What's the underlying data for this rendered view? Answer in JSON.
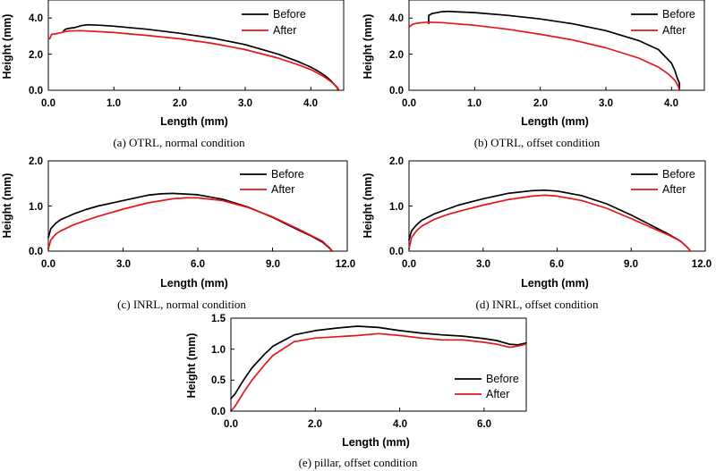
{
  "colors": {
    "before": "#000000",
    "after": "#e8141b"
  },
  "chart_data": [
    {
      "type": "line",
      "caption": "(a) OTRL, normal condition",
      "xlabel": "Length (mm)",
      "ylabel": "Height (mm)",
      "xlim": [
        0,
        4.5
      ],
      "ylim": [
        0,
        5.0
      ],
      "xticks": [
        0,
        1,
        2,
        3,
        4
      ],
      "xtick_labels": [
        "0.0",
        "1.0",
        "2.0",
        "3.0",
        "4.0"
      ],
      "yticks": [
        0,
        2,
        4
      ],
      "ytick_labels": [
        "0.0",
        "2.0",
        "4.0"
      ],
      "legend": {
        "position": "top-right",
        "entries": [
          "Before",
          "After"
        ]
      },
      "series": [
        {
          "name": "Before",
          "x": [
            0.23,
            0.26,
            0.3,
            0.4,
            0.5,
            0.6,
            0.8,
            1.0,
            1.5,
            2.0,
            2.5,
            3.0,
            3.5,
            3.8,
            4.0,
            4.1,
            4.2,
            4.3,
            4.4,
            4.42
          ],
          "y": [
            3.28,
            3.38,
            3.42,
            3.47,
            3.58,
            3.63,
            3.6,
            3.55,
            3.38,
            3.16,
            2.89,
            2.53,
            2.0,
            1.6,
            1.28,
            1.08,
            0.85,
            0.55,
            0.15,
            0
          ]
        },
        {
          "name": "After",
          "x": [
            0.02,
            0.05,
            0.1,
            0.2,
            0.3,
            0.5,
            1.0,
            1.5,
            2.0,
            2.5,
            3.0,
            3.5,
            3.8,
            4.0,
            4.1,
            4.2,
            4.3,
            4.4,
            4.43
          ],
          "y": [
            2.85,
            3.1,
            3.12,
            3.2,
            3.28,
            3.3,
            3.2,
            3.04,
            2.85,
            2.6,
            2.25,
            1.78,
            1.42,
            1.15,
            0.95,
            0.75,
            0.5,
            0.18,
            0
          ]
        }
      ]
    },
    {
      "type": "line",
      "caption": "(b) OTRL, offset condition",
      "xlabel": "Length (mm)",
      "ylabel": "Height (mm)",
      "xlim": [
        0,
        4.5
      ],
      "ylim": [
        0,
        5.0
      ],
      "xticks": [
        0,
        1,
        2,
        3,
        4
      ],
      "xtick_labels": [
        "0.0",
        "1.0",
        "2.0",
        "3.0",
        "4.0"
      ],
      "yticks": [
        0,
        2,
        4
      ],
      "ytick_labels": [
        "0.0",
        "2.0",
        "4.0"
      ],
      "legend": {
        "position": "top-right",
        "entries": [
          "Before",
          "After"
        ]
      },
      "series": [
        {
          "name": "Before",
          "x": [
            0.3,
            0.3,
            0.35,
            0.5,
            0.6,
            0.7,
            1.0,
            1.5,
            2.0,
            2.5,
            3.0,
            3.5,
            3.8,
            4.0,
            4.05,
            4.08,
            4.1,
            4.12,
            4.12
          ],
          "y": [
            3.7,
            4.15,
            4.25,
            4.35,
            4.37,
            4.35,
            4.3,
            4.15,
            3.95,
            3.68,
            3.3,
            2.75,
            2.25,
            1.5,
            1.1,
            0.75,
            0.55,
            0.4,
            0
          ]
        },
        {
          "name": "After",
          "x": [
            0,
            0.05,
            0.1,
            0.2,
            0.3,
            0.5,
            1.0,
            1.5,
            2.0,
            2.5,
            3.0,
            3.5,
            3.8,
            3.95,
            4.05,
            4.1,
            4.12
          ],
          "y": [
            3.5,
            3.65,
            3.7,
            3.75,
            3.77,
            3.75,
            3.6,
            3.38,
            3.1,
            2.78,
            2.35,
            1.78,
            1.28,
            0.9,
            0.55,
            0.25,
            0
          ]
        }
      ]
    },
    {
      "type": "line",
      "caption": "(c) INRL, normal condition",
      "xlabel": "Length (mm)",
      "ylabel": "Height (mm)",
      "xlim": [
        0,
        12.0
      ],
      "ylim": [
        0,
        2.0
      ],
      "xticks": [
        0,
        3,
        6,
        9,
        12
      ],
      "xtick_labels": [
        "0.0",
        "3.0",
        "6.0",
        "9.0",
        "12.0"
      ],
      "yticks": [
        0,
        1,
        2
      ],
      "ytick_labels": [
        "0.0",
        "1.0",
        "2.0"
      ],
      "legend": {
        "position": "top-right",
        "entries": [
          "Before",
          "After"
        ]
      },
      "series": [
        {
          "name": "Before",
          "x": [
            0,
            0.1,
            0.3,
            0.5,
            1.0,
            1.5,
            2.0,
            3.0,
            4.0,
            4.5,
            5.0,
            6.0,
            7.0,
            8.0,
            9.0,
            10.0,
            10.5,
            11.0,
            11.3,
            11.4
          ],
          "y": [
            0.3,
            0.5,
            0.62,
            0.7,
            0.82,
            0.92,
            1.0,
            1.12,
            1.24,
            1.27,
            1.28,
            1.25,
            1.15,
            0.98,
            0.75,
            0.48,
            0.35,
            0.2,
            0.06,
            0
          ]
        },
        {
          "name": "After",
          "x": [
            0,
            0.1,
            0.3,
            0.5,
            1.0,
            1.5,
            2.0,
            3.0,
            4.0,
            5.0,
            5.5,
            6.0,
            7.0,
            8.0,
            9.0,
            10.0,
            10.5,
            11.0,
            11.3,
            11.4
          ],
          "y": [
            0.05,
            0.25,
            0.38,
            0.45,
            0.58,
            0.68,
            0.77,
            0.93,
            1.07,
            1.16,
            1.18,
            1.18,
            1.12,
            0.97,
            0.76,
            0.5,
            0.36,
            0.22,
            0.07,
            0
          ]
        }
      ]
    },
    {
      "type": "line",
      "caption": "(d) INRL, offset condition",
      "xlabel": "Length (mm)",
      "ylabel": "Height (mm)",
      "xlim": [
        0,
        12.0
      ],
      "ylim": [
        0,
        2.0
      ],
      "xticks": [
        0,
        3,
        6,
        9,
        12
      ],
      "xtick_labels": [
        "0.0",
        "3.0",
        "6.0",
        "9.0",
        "12.0"
      ],
      "yticks": [
        0,
        1,
        2
      ],
      "ytick_labels": [
        "0.0",
        "1.0",
        "2.0"
      ],
      "legend": {
        "position": "top-right",
        "entries": [
          "Before",
          "After"
        ]
      },
      "series": [
        {
          "name": "Before",
          "x": [
            0,
            0.1,
            0.3,
            0.5,
            1.0,
            1.5,
            2.0,
            3.0,
            4.0,
            5.0,
            5.5,
            6.0,
            7.0,
            8.0,
            9.0,
            10.0,
            10.5,
            11.0,
            11.3,
            11.4
          ],
          "y": [
            0.25,
            0.45,
            0.58,
            0.68,
            0.82,
            0.92,
            1.02,
            1.16,
            1.28,
            1.34,
            1.35,
            1.33,
            1.23,
            1.05,
            0.8,
            0.52,
            0.38,
            0.22,
            0.07,
            0
          ]
        },
        {
          "name": "After",
          "x": [
            0,
            0.1,
            0.3,
            0.5,
            1.0,
            1.5,
            2.0,
            3.0,
            4.0,
            5.0,
            5.5,
            6.0,
            7.0,
            8.0,
            9.0,
            10.0,
            10.5,
            11.0,
            11.3,
            11.4
          ],
          "y": [
            0.05,
            0.3,
            0.45,
            0.55,
            0.7,
            0.8,
            0.88,
            1.02,
            1.14,
            1.22,
            1.24,
            1.22,
            1.12,
            0.95,
            0.72,
            0.48,
            0.36,
            0.22,
            0.07,
            0
          ]
        }
      ]
    },
    {
      "type": "line",
      "caption": "(e) pillar, offset condition",
      "xlabel": "Length (mm)",
      "ylabel": "Height (mm)",
      "xlim": [
        0,
        7.0
      ],
      "ylim": [
        0,
        1.5
      ],
      "xticks": [
        0,
        2,
        4,
        6
      ],
      "xtick_labels": [
        "0.0",
        "2.0",
        "4.0",
        "6.0"
      ],
      "yticks": [
        0,
        0.5,
        1.0,
        1.5
      ],
      "ytick_labels": [
        "0.0",
        "0.5",
        "1.0",
        "1.5"
      ],
      "legend": {
        "position": "bottom-right",
        "entries": [
          "Before",
          "After"
        ]
      },
      "series": [
        {
          "name": "Before",
          "x": [
            0,
            0.1,
            0.3,
            0.5,
            0.8,
            1.0,
            1.5,
            2.0,
            2.5,
            3.0,
            3.5,
            4.0,
            4.5,
            5.0,
            5.5,
            6.0,
            6.3,
            6.6,
            6.8,
            7.0
          ],
          "y": [
            0.2,
            0.28,
            0.5,
            0.7,
            0.92,
            1.05,
            1.23,
            1.3,
            1.34,
            1.37,
            1.35,
            1.3,
            1.26,
            1.23,
            1.21,
            1.17,
            1.14,
            1.08,
            1.07,
            1.1
          ]
        },
        {
          "name": "After",
          "x": [
            0,
            0.1,
            0.3,
            0.5,
            0.8,
            1.0,
            1.5,
            2.0,
            2.5,
            3.0,
            3.5,
            4.0,
            4.5,
            5.0,
            5.5,
            6.0,
            6.3,
            6.6,
            6.8,
            7.0
          ],
          "y": [
            0,
            0.08,
            0.3,
            0.5,
            0.75,
            0.9,
            1.12,
            1.18,
            1.2,
            1.22,
            1.25,
            1.22,
            1.18,
            1.15,
            1.15,
            1.11,
            1.08,
            1.03,
            1.05,
            1.08
          ]
        }
      ]
    }
  ]
}
